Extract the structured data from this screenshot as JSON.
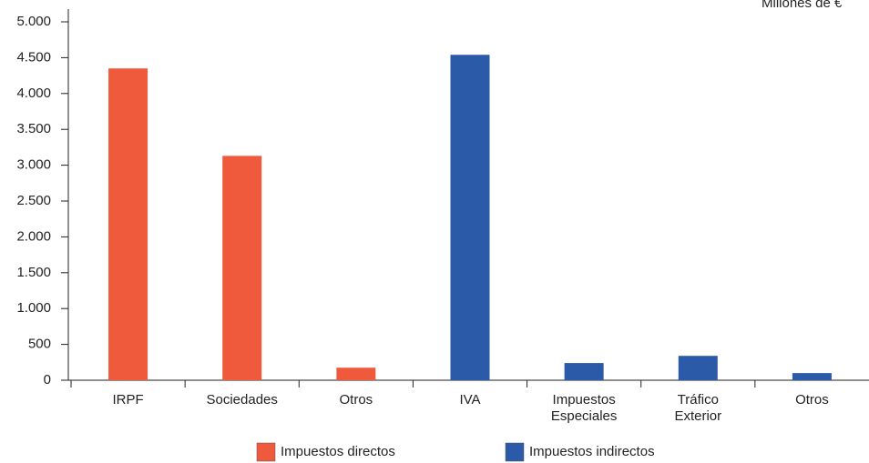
{
  "chart_data": {
    "type": "bar",
    "unit_label": "Millones de €",
    "categories": [
      "IRPF",
      "Sociedades",
      "Otros",
      "IVA",
      "Impuestos Especiales",
      "Tráfico Exterior",
      "Otros"
    ],
    "series": [
      {
        "name": "Impuestos directos",
        "color": "#f05a3c",
        "values": [
          4350,
          3130,
          175,
          null,
          null,
          null,
          null
        ]
      },
      {
        "name": "Impuestos indirectos",
        "color": "#2a5aa8",
        "values": [
          null,
          null,
          null,
          4540,
          240,
          340,
          100
        ]
      }
    ],
    "ylim": [
      0,
      5000
    ],
    "yticks": [
      0,
      500,
      {
        "value": 1000,
        "label": "1.000"
      },
      {
        "value": 1500,
        "label": "1.500"
      },
      {
        "value": 2000,
        "label": "2.000"
      },
      {
        "value": 2500,
        "label": "2.500"
      },
      {
        "value": 3000,
        "label": "3.000"
      },
      {
        "value": 3500,
        "label": "3.500"
      },
      {
        "value": 4000,
        "label": "4.000"
      },
      {
        "value": 4500,
        "label": "4.500"
      },
      {
        "value": 5000,
        "label": "5.000"
      }
    ],
    "grid": false,
    "legend": "bottom"
  }
}
